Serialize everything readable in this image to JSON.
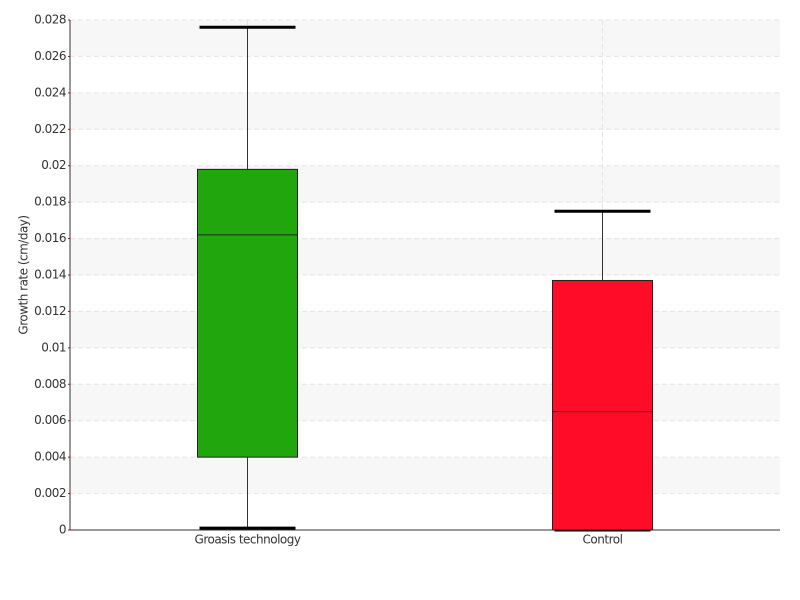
{
  "chart_data": {
    "type": "box",
    "ylabel": "Growth rate (cm/day)",
    "categories": [
      "Groasis technology",
      "Control"
    ],
    "boxes": [
      {
        "min": 0.0001,
        "q1": 0.004,
        "median": 0.0162,
        "q3": 0.0198,
        "max": 0.0276,
        "color": "#22a60e"
      },
      {
        "min": 0,
        "q1": 0,
        "median": 0.0065,
        "q3": 0.0137,
        "max": 0.0175,
        "color": "#ff0c28"
      }
    ],
    "ylim": [
      0,
      0.028
    ],
    "yticks": [
      0,
      0.002,
      0.004,
      0.006,
      0.008,
      0.01,
      0.012,
      0.014,
      0.016,
      0.018,
      0.02,
      0.022,
      0.024,
      0.026,
      0.028
    ],
    "grid": true
  }
}
